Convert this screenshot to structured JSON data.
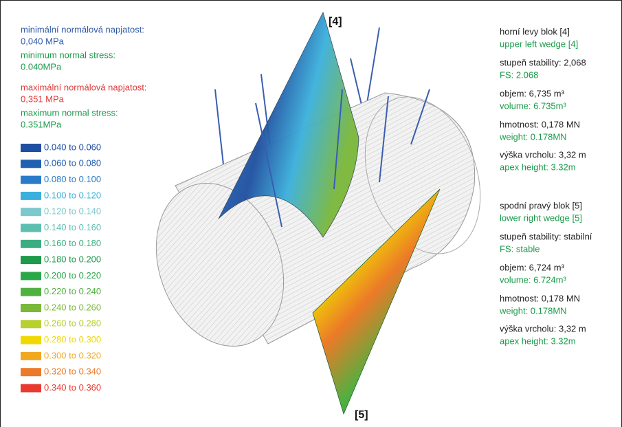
{
  "labels": {
    "top": "[4]",
    "bottom": "[5]"
  },
  "left_lines": [
    {
      "text": "minimální normálová napjatost:",
      "color": "#2f5aa8"
    },
    {
      "text": "0,040 MPa",
      "color": "#2f5aa8"
    },
    {
      "text": "minimum normal stress:",
      "color": "#1a9a4a"
    },
    {
      "text": "0.040MPa",
      "color": "#1a9a4a"
    },
    {
      "text": "maximální normálová napjatost:",
      "color": "#e03a3a"
    },
    {
      "text": "0,351 MPa",
      "color": "#e03a3a"
    },
    {
      "text": "maximum normal stress:",
      "color": "#1a9a4a"
    },
    {
      "text": "0.351MPa",
      "color": "#1a9a4a"
    }
  ],
  "legend": [
    {
      "label": "0.040 to 0.060",
      "color": "#1f4fa0"
    },
    {
      "label": "0.060 to 0.080",
      "color": "#2060b0"
    },
    {
      "label": "0.080 to 0.100",
      "color": "#2a7cc8"
    },
    {
      "label": "0.100 to 0.120",
      "color": "#3ab0dc"
    },
    {
      "label": "0.120 to 0.140",
      "color": "#7cc8cc"
    },
    {
      "label": "0.140 to 0.160",
      "color": "#5cbfb0"
    },
    {
      "label": "0.160 to 0.180",
      "color": "#3aae80"
    },
    {
      "label": "0.180 to 0.200",
      "color": "#1e9a4a"
    },
    {
      "label": "0.200 to 0.220",
      "color": "#2aa848"
    },
    {
      "label": "0.220 to 0.240",
      "color": "#50b040"
    },
    {
      "label": "0.240 to 0.260",
      "color": "#7ab83a"
    },
    {
      "label": "0.260 to 0.280",
      "color": "#b8d030"
    },
    {
      "label": "0.280 to 0.300",
      "color": "#f0d800"
    },
    {
      "label": "0.300 to 0.320",
      "color": "#f0a820"
    },
    {
      "label": "0.320 to 0.340",
      "color": "#ec7a28"
    },
    {
      "label": "0.340 to 0.360",
      "color": "#e83a30"
    }
  ],
  "right_blocks": [
    [
      {
        "text": "horní levy blok [4]",
        "color": "#222222"
      },
      {
        "text": "upper left wedge [4]",
        "color": "#1a9a4a"
      },
      {
        "text": "stupeň stability: 2,068",
        "color": "#222222"
      },
      {
        "text": "FS: 2.068",
        "color": "#1a9a4a"
      },
      {
        "text": "objem: 6,735 m³",
        "color": "#222222"
      },
      {
        "text": "volume: 6.735m³",
        "color": "#1a9a4a"
      },
      {
        "text": "hmotnost: 0,178 MN",
        "color": "#222222"
      },
      {
        "text": "weight: 0.178MN",
        "color": "#1a9a4a"
      },
      {
        "text": "výška vrcholu: 3,32 m",
        "color": "#222222"
      },
      {
        "text": "apex height: 3.32m",
        "color": "#1a9a4a"
      }
    ],
    [
      {
        "text": "spodní pravý blok [5]",
        "color": "#222222"
      },
      {
        "text": "lower right wedge [5]",
        "color": "#1a9a4a"
      },
      {
        "text": "stupeň stability: stabilní",
        "color": "#222222"
      },
      {
        "text": "FS: stable",
        "color": "#1a9a4a"
      },
      {
        "text": "objem: 6,724 m³",
        "color": "#222222"
      },
      {
        "text": "volume: 6.724m³",
        "color": "#1a9a4a"
      },
      {
        "text": "hmotnost: 0,178 MN",
        "color": "#222222"
      },
      {
        "text": "weight: 0.178MN",
        "color": "#1a9a4a"
      },
      {
        "text": "výška vrcholu: 3,32 m",
        "color": "#222222"
      },
      {
        "text": "apex height: 3.32m",
        "color": "#1a9a4a"
      }
    ]
  ]
}
